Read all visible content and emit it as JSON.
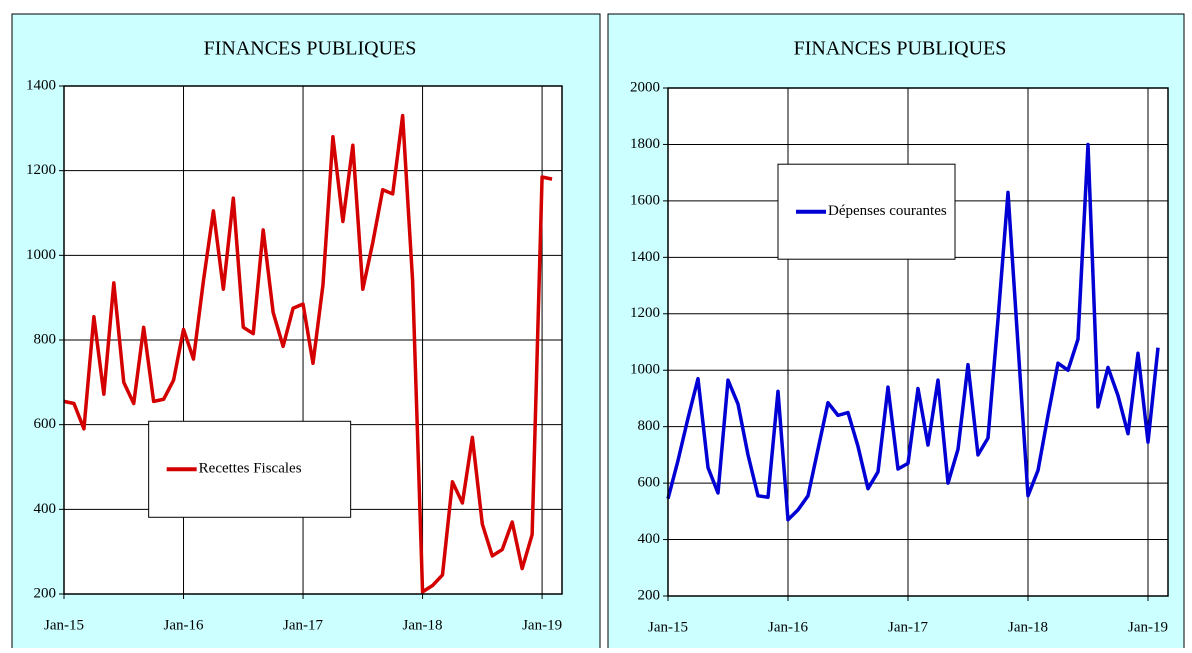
{
  "chart_data": [
    {
      "type": "line",
      "title": "FINANCES PUBLIQUES",
      "categories": [
        "Jan-15",
        null,
        null,
        null,
        null,
        null,
        null,
        null,
        null,
        null,
        null,
        null,
        "Jan-16",
        null,
        null,
        null,
        null,
        null,
        null,
        null,
        null,
        null,
        null,
        null,
        "Jan-17",
        null,
        null,
        null,
        null,
        null,
        null,
        null,
        null,
        null,
        null,
        null,
        "Jan-18",
        null,
        null,
        null,
        null,
        null,
        null,
        null,
        null,
        null,
        null,
        null,
        "Jan-19",
        null
      ],
      "series": [
        {
          "name": "Recettes Fiscales",
          "color": "#d40000",
          "values": [
            655,
            650,
            590,
            855,
            672,
            935,
            700,
            650,
            830,
            655,
            660,
            705,
            825,
            755,
            940,
            1105,
            920,
            1135,
            830,
            815,
            1060,
            865,
            785,
            875,
            885,
            745,
            930,
            1280,
            1080,
            1260,
            920,
            1030,
            1155,
            1145,
            1330,
            940,
            205,
            220,
            245,
            465,
            415,
            570,
            365,
            290,
            305,
            370,
            260,
            340,
            1185,
            1180
          ]
        }
      ],
      "ylim": [
        200,
        1400
      ],
      "yticks": [
        200,
        400,
        600,
        800,
        1000,
        1200,
        1400
      ],
      "grid": true,
      "legend": "lower-left"
    },
    {
      "type": "line",
      "title": "FINANCES PUBLIQUES",
      "categories": [
        "Jan-15",
        null,
        null,
        null,
        null,
        null,
        null,
        null,
        null,
        null,
        null,
        null,
        "Jan-16",
        null,
        null,
        null,
        null,
        null,
        null,
        null,
        null,
        null,
        null,
        null,
        "Jan-17",
        null,
        null,
        null,
        null,
        null,
        null,
        null,
        null,
        null,
        null,
        null,
        "Jan-18",
        null,
        null,
        null,
        null,
        null,
        null,
        null,
        null,
        null,
        null,
        null,
        "Jan-19",
        null
      ],
      "series": [
        {
          "name": "Dépenses courantes",
          "color": "#0000d4",
          "values": [
            545,
            680,
            830,
            970,
            655,
            565,
            965,
            880,
            700,
            555,
            550,
            925,
            470,
            505,
            555,
            720,
            885,
            840,
            850,
            730,
            580,
            640,
            940,
            650,
            670,
            935,
            735,
            965,
            600,
            720,
            1020,
            700,
            760,
            1180,
            1630,
            1090,
            555,
            645,
            840,
            1025,
            1000,
            1110,
            1800,
            870,
            1010,
            910,
            775,
            1060,
            745,
            1080
          ]
        }
      ],
      "ylim": [
        200,
        2000
      ],
      "yticks": [
        200,
        400,
        600,
        800,
        1000,
        1200,
        1400,
        1600,
        1800,
        2000
      ],
      "grid": true,
      "legend": "upper-left"
    }
  ]
}
